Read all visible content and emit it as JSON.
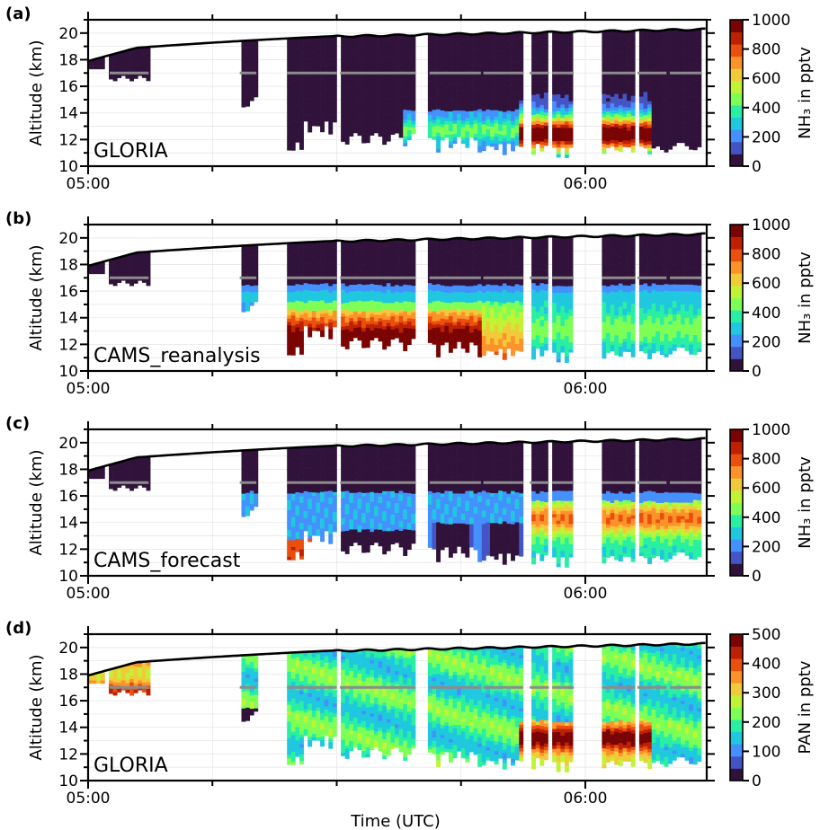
{
  "chart_data": [
    {
      "type": "heatmap",
      "panel_label": "(a)",
      "annotation": "GLORIA",
      "ylabel": "Altitude (km)",
      "xlabel": "",
      "x_ticks": [
        "05:00",
        "06:00"
      ],
      "y_ticks": [
        "10",
        "12",
        "14",
        "16",
        "18",
        "20"
      ],
      "ylim": [
        10,
        21
      ],
      "colorbar": {
        "label": "NH₃ in pptv",
        "min": 0,
        "max": 1000,
        "ticks": [
          "0",
          "200",
          "400",
          "600",
          "800",
          "1000"
        ]
      },
      "profile": "gloria_nh3"
    },
    {
      "type": "heatmap",
      "panel_label": "(b)",
      "annotation": "CAMS_reanalysis",
      "ylabel": "Altitude (km)",
      "xlabel": "",
      "x_ticks": [
        "05:00",
        "06:00"
      ],
      "y_ticks": [
        "10",
        "12",
        "14",
        "16",
        "18",
        "20"
      ],
      "ylim": [
        10,
        21
      ],
      "colorbar": {
        "label": "NH₃ in pptv",
        "min": 0,
        "max": 1000,
        "ticks": [
          "0",
          "200",
          "400",
          "600",
          "800",
          "1000"
        ]
      },
      "profile": "cams_reanalysis"
    },
    {
      "type": "heatmap",
      "panel_label": "(c)",
      "annotation": "CAMS_forecast",
      "ylabel": "Altitude (km)",
      "xlabel": "",
      "x_ticks": [
        "05:00",
        "06:00"
      ],
      "y_ticks": [
        "10",
        "12",
        "14",
        "16",
        "18",
        "20"
      ],
      "ylim": [
        10,
        21
      ],
      "colorbar": {
        "label": "NH₃ in pptv",
        "min": 0,
        "max": 1000,
        "ticks": [
          "0",
          "200",
          "400",
          "600",
          "800",
          "1000"
        ]
      },
      "profile": "cams_forecast"
    },
    {
      "type": "heatmap",
      "panel_label": "(d)",
      "annotation": "GLORIA",
      "ylabel": "Altitude (km)",
      "xlabel": "Time (UTC)",
      "x_ticks": [
        "05:00",
        "06:00"
      ],
      "y_ticks": [
        "10",
        "12",
        "14",
        "16",
        "18",
        "20"
      ],
      "ylim": [
        10,
        21
      ],
      "colorbar": {
        "label": "PAN in pptv",
        "min": 0,
        "max": 500,
        "ticks": [
          "0",
          "100",
          "200",
          "300",
          "400",
          "500"
        ]
      },
      "profile": "gloria_pan"
    }
  ],
  "colors": {
    "colormap": [
      "#30123b",
      "#4454c4",
      "#4490fe",
      "#1fc8de",
      "#29efa2",
      "#7dff56",
      "#c1f334",
      "#f1ca3a",
      "#fe922a",
      "#ea4f0d",
      "#be2102",
      "#7a0403"
    ],
    "flight_altitude_line": "#000000",
    "tangent_line": "#8c8c8c"
  }
}
